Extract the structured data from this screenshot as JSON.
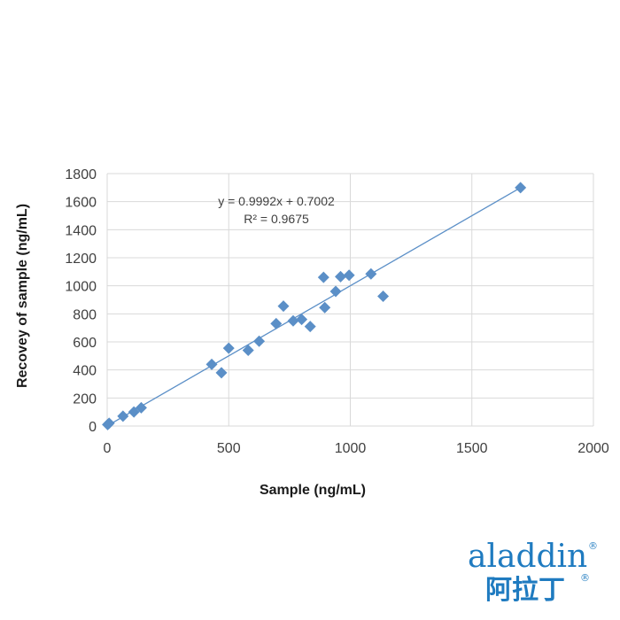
{
  "chart_data": {
    "type": "scatter",
    "xlabel": "Sample (ng/mL)",
    "ylabel": "Recovey of sample (ng/mL)",
    "xlim": [
      0,
      2000
    ],
    "ylim": [
      0,
      1800
    ],
    "x_ticks": [
      "0",
      "500",
      "1000",
      "1500",
      "2000"
    ],
    "y_ticks": [
      "0",
      "200",
      "400",
      "600",
      "800",
      "1000",
      "1200",
      "1400",
      "1600",
      "1800"
    ],
    "grid": true,
    "marker": "diamond",
    "colors": {
      "points": "#5b8fc7",
      "trendline": "#5b8fc7",
      "grid": "#d9d9d9"
    },
    "trendline": {
      "slope": 0.9992,
      "intercept": 0.7002,
      "equation": "y = 0.9992x + 0.7002",
      "r_squared": "R² = 0.9675"
    },
    "points": [
      {
        "x": 2,
        "y": 10
      },
      {
        "x": 8,
        "y": 20
      },
      {
        "x": 65,
        "y": 70
      },
      {
        "x": 110,
        "y": 100
      },
      {
        "x": 140,
        "y": 130
      },
      {
        "x": 430,
        "y": 440
      },
      {
        "x": 470,
        "y": 380
      },
      {
        "x": 500,
        "y": 555
      },
      {
        "x": 580,
        "y": 540
      },
      {
        "x": 625,
        "y": 605
      },
      {
        "x": 695,
        "y": 730
      },
      {
        "x": 725,
        "y": 855
      },
      {
        "x": 765,
        "y": 750
      },
      {
        "x": 800,
        "y": 760
      },
      {
        "x": 835,
        "y": 710
      },
      {
        "x": 890,
        "y": 1060
      },
      {
        "x": 895,
        "y": 845
      },
      {
        "x": 940,
        "y": 960
      },
      {
        "x": 960,
        "y": 1065
      },
      {
        "x": 995,
        "y": 1075
      },
      {
        "x": 1085,
        "y": 1085
      },
      {
        "x": 1135,
        "y": 925
      },
      {
        "x": 1700,
        "y": 1700
      }
    ]
  },
  "logo": {
    "text_en": "aladdin",
    "text_cn": "阿拉丁",
    "mark": "®",
    "color": "#1f7bc0"
  }
}
